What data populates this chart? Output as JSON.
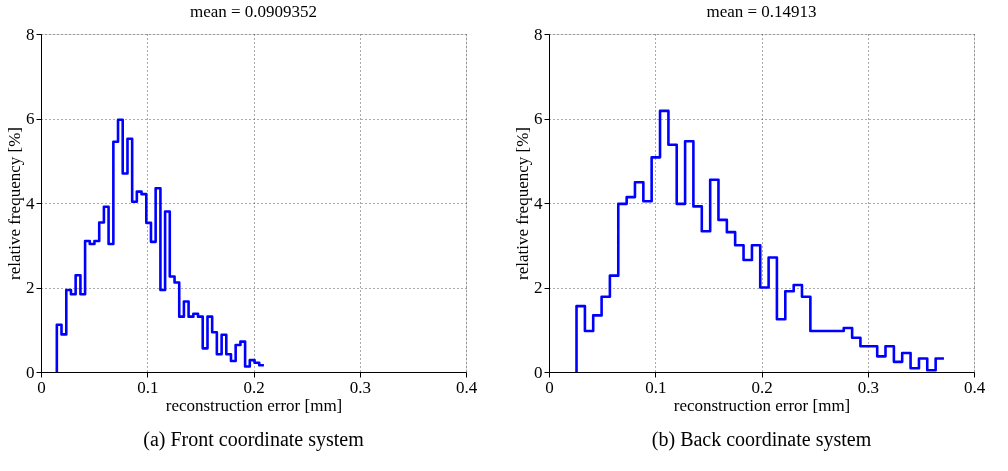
{
  "chart_data": [
    {
      "type": "histogram",
      "title": "mean = 0.0909352",
      "xlabel": "reconstruction error [mm]",
      "ylabel": "relative frequency [%]",
      "annotations": [
        "(a)  Front coordinate system"
      ],
      "bins": [
        0.0149,
        0.0193,
        0.0238,
        0.0282,
        0.0326,
        0.0371,
        0.0415,
        0.0459,
        0.0503,
        0.0548,
        0.0592,
        0.0636,
        0.0681,
        0.0725,
        0.0769,
        0.0814,
        0.0858,
        0.0902,
        0.0946,
        0.0991,
        0.1035,
        0.1079,
        0.1124,
        0.1168,
        0.1212,
        0.1257,
        0.1301,
        0.1345,
        0.1389,
        0.1434,
        0.1478,
        0.1522,
        0.1567,
        0.1611,
        0.1655,
        0.17,
        0.1744,
        0.1788,
        0.1832,
        0.1877,
        0.1921,
        0.1965,
        0.201,
        0.2054,
        0.2098
      ],
      "values": [
        1.12,
        0.89,
        1.94,
        1.84,
        2.29,
        1.84,
        3.1,
        3.03,
        3.1,
        3.54,
        3.91,
        3.03,
        5.45,
        5.97,
        4.7,
        5.52,
        4.03,
        4.27,
        4.21,
        3.53,
        3.08,
        4.35,
        1.94,
        3.8,
        2.26,
        2.12,
        1.31,
        1.67,
        1.31,
        1.38,
        1.31,
        0.56,
        1.31,
        0.94,
        0.42,
        0.88,
        0.42,
        0.26,
        0.64,
        0.72,
        0.13,
        0.28,
        0.22,
        0.16
      ],
      "color": "#0000ff",
      "xlim": [
        0,
        0.4
      ],
      "ylim": [
        0,
        8
      ],
      "xticks": [
        0,
        0.1,
        0.2,
        0.3,
        0.4
      ],
      "yticks": [
        0,
        2,
        4,
        6,
        8
      ],
      "grid": true
    },
    {
      "type": "histogram",
      "title": "mean = 0.14913",
      "xlabel": "reconstruction error [mm]",
      "ylabel": "relative frequency [%]",
      "annotations": [
        "(b)  Back coordinate system"
      ],
      "bins": [
        0.0259,
        0.0338,
        0.0416,
        0.0495,
        0.0573,
        0.0652,
        0.0731,
        0.0809,
        0.0888,
        0.0966,
        0.1045,
        0.1124,
        0.1202,
        0.1281,
        0.1359,
        0.1438,
        0.1517,
        0.1595,
        0.1674,
        0.1752,
        0.1831,
        0.191,
        0.1988,
        0.2067,
        0.2145,
        0.2224,
        0.2303,
        0.2381,
        0.246,
        0.2538,
        0.2617,
        0.2696,
        0.2774,
        0.2853,
        0.2931,
        0.301,
        0.3089,
        0.3167,
        0.3246,
        0.3324,
        0.3403,
        0.3482,
        0.356,
        0.3639,
        0.3717
      ],
      "values": [
        1.56,
        0.97,
        1.34,
        1.78,
        2.28,
        3.98,
        4.14,
        4.49,
        4.04,
        5.08,
        6.18,
        5.38,
        3.98,
        5.46,
        3.92,
        3.33,
        4.55,
        3.6,
        3.31,
        3.0,
        2.65,
        3.0,
        2.0,
        2.71,
        1.25,
        1.91,
        2.06,
        1.78,
        0.97,
        0.97,
        0.97,
        0.97,
        1.04,
        0.81,
        0.61,
        0.61,
        0.37,
        0.61,
        0.24,
        0.45,
        0.09,
        0.32,
        0.04,
        0.32
      ],
      "color": "#0000ff",
      "xlim": [
        0,
        0.4
      ],
      "ylim": [
        0,
        8
      ],
      "xticks": [
        0,
        0.1,
        0.2,
        0.3,
        0.4
      ],
      "yticks": [
        0,
        2,
        4,
        6,
        8
      ],
      "grid": true
    }
  ]
}
